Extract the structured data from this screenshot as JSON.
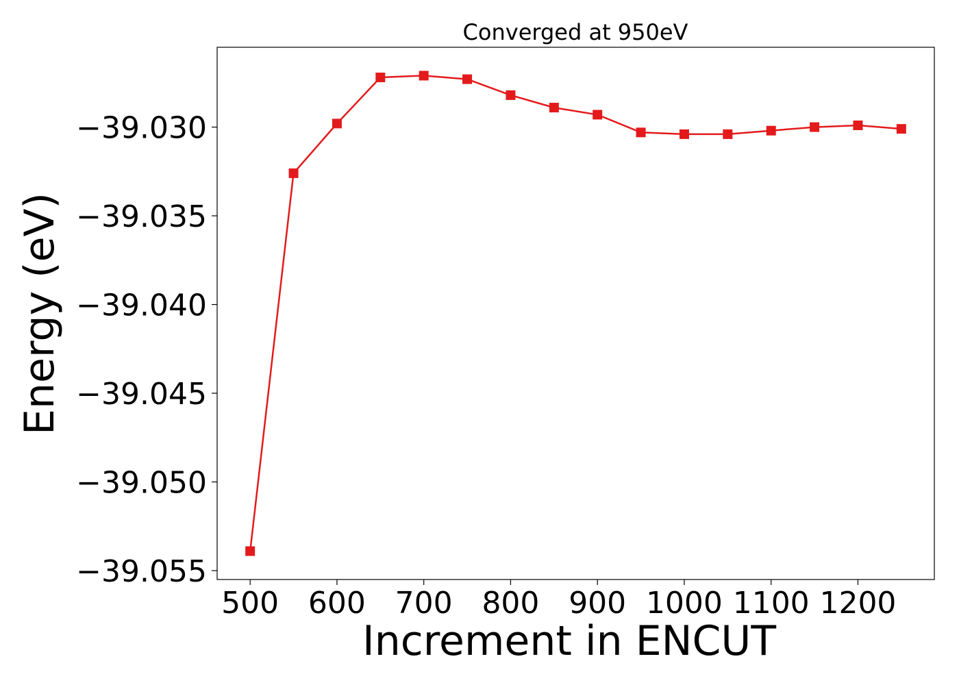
{
  "chart_data": {
    "type": "line",
    "title": "Converged at 950eV",
    "xlabel": "Increment in ENCUT",
    "ylabel": "Energy (eV)",
    "xlim": [
      462,
      1288
    ],
    "ylim": [
      -39.0555,
      -39.0255
    ],
    "x_ticks": [
      500,
      600,
      700,
      800,
      900,
      1000,
      1100,
      1200
    ],
    "x_tick_labels": [
      "500",
      "600",
      "700",
      "800",
      "900",
      "1000",
      "1100",
      "1200"
    ],
    "y_ticks": [
      -39.055,
      -39.05,
      -39.045,
      -39.04,
      -39.035,
      -39.03
    ],
    "y_tick_labels": [
      "−39.055",
      "−39.050",
      "−39.045",
      "−39.040",
      "−39.035",
      "−39.030"
    ],
    "grid": false,
    "series": [
      {
        "color": "#e31a1c",
        "marker": "square",
        "x": [
          500,
          550,
          600,
          650,
          700,
          750,
          800,
          850,
          900,
          950,
          1000,
          1050,
          1100,
          1150,
          1200,
          1250
        ],
        "y": [
          -39.0539,
          -39.0326,
          -39.0298,
          -39.0272,
          -39.0271,
          -39.0273,
          -39.0282,
          -39.0289,
          -39.0293,
          -39.0303,
          -39.0304,
          -39.0304,
          -39.0302,
          -39.03,
          -39.0299,
          -39.0301
        ]
      }
    ]
  }
}
